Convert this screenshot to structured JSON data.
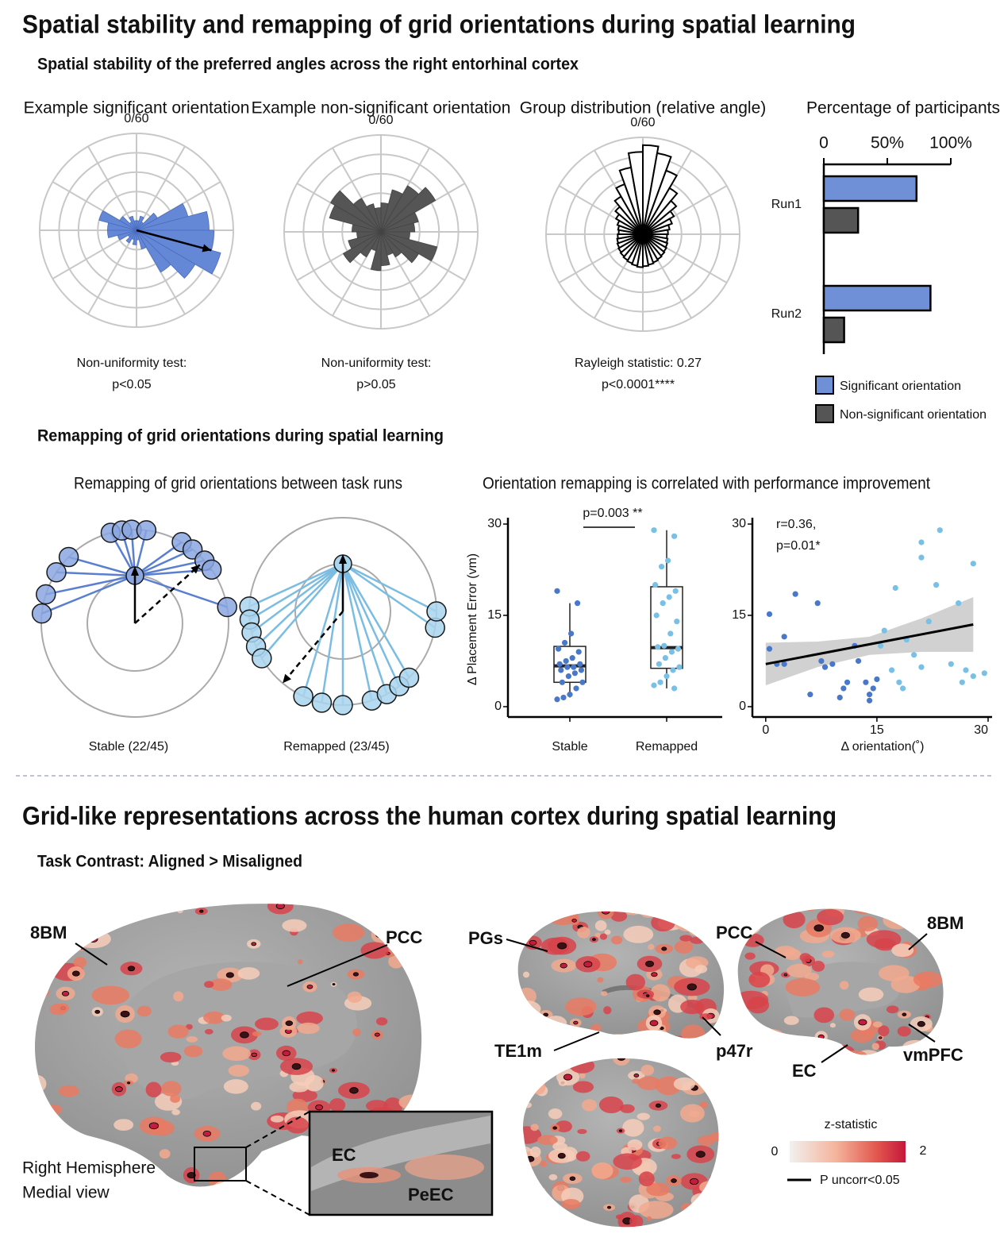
{
  "title": "Spatial stability and remapping of grid orientations during spatial learning",
  "stability": {
    "subtitle": "Spatial stability of the preferred angles across the right entorhinal cortex",
    "polar": [
      {
        "type": "rose",
        "title": "Example significant orientation",
        "top_label": "0/60",
        "color": "#6487d6",
        "edge": "#4a6cc0",
        "rlim": [
          0,
          1
        ],
        "values": [
          0.1,
          0.15,
          0.1,
          0.25,
          0.55,
          0.75,
          0.8,
          0.9,
          0.7,
          0.5,
          0.2,
          0.1,
          0.15,
          0.1,
          0.15,
          0.1,
          0.2,
          0.3,
          0.3,
          0.4,
          0.2,
          0.1,
          0.15,
          0.1
        ],
        "arrow": {
          "angle": 105,
          "length": 0.8
        },
        "caption": [
          "Non-uniformity test:",
          "p<0.05"
        ]
      },
      {
        "type": "rose",
        "title": "Example non-significant orientation",
        "top_label": "0/60",
        "color": "#555555",
        "edge": "#444444",
        "rlim": [
          0,
          1
        ],
        "values": [
          0.3,
          0.45,
          0.55,
          0.65,
          0.4,
          0.35,
          0.3,
          0.6,
          0.45,
          0.3,
          0.25,
          0.35,
          0.4,
          0.2,
          0.3,
          0.45,
          0.35,
          0.25,
          0.3,
          0.55,
          0.6,
          0.4,
          0.3,
          0.25
        ],
        "caption": [
          "Non-uniformity test:",
          "p>0.05"
        ]
      },
      {
        "type": "rose",
        "title": "Group distribution (relative angle)",
        "top_label": "0/60",
        "color": "#ffffff",
        "edge": "#000000",
        "rlim": [
          0,
          1
        ],
        "values": [
          0.92,
          0.85,
          0.7,
          0.55,
          0.45,
          0.37,
          0.32,
          0.28,
          0.26,
          0.25,
          0.26,
          0.27,
          0.28,
          0.29,
          0.3,
          0.31,
          0.32,
          0.33,
          0.34,
          0.33,
          0.32,
          0.31,
          0.3,
          0.29,
          0.28,
          0.27,
          0.26,
          0.25,
          0.26,
          0.28,
          0.32,
          0.37,
          0.45,
          0.55,
          0.7,
          0.85
        ],
        "caption": [
          "Rayleigh statistic: 0.27",
          "p<0.0001****"
        ]
      }
    ],
    "bar_chart": {
      "type": "bar",
      "title": "Percentage of participants",
      "orientation": "horizontal",
      "categories": [
        "Run1",
        "Run2"
      ],
      "series": [
        {
          "name": "Significant orientation",
          "color": "#6f8fd6",
          "values": [
            73,
            84
          ]
        },
        {
          "name": "Non-significant orientation",
          "color": "#555555",
          "values": [
            27,
            16
          ]
        }
      ],
      "xlim": [
        0,
        100
      ],
      "xticks": [
        0,
        {
          "value": 50,
          "label": "50%"
        },
        {
          "value": 100,
          "label": "100%"
        }
      ]
    }
  },
  "remapping": {
    "subtitle": "Remapping of grid orientations during spatial learning",
    "circles": {
      "title": "Remapping of grid orientations between task runs",
      "panels": [
        {
          "label": "Stable (22/45)",
          "color": "#8aa6e0",
          "line_color": "#5a7fd0",
          "angles": [
            -84,
            -72,
            -57,
            -45,
            -15,
            -8,
            -2,
            7,
            30,
            38,
            48,
            55,
            80
          ]
        },
        {
          "label": "Remapped (23/45)",
          "color": "#a9d5ee",
          "line_color": "#7bbde2",
          "angles": [
            -87,
            -95,
            -103,
            -112,
            -120,
            -155,
            -167,
            180,
            162,
            152,
            143,
            135,
            100,
            90
          ]
        }
      ]
    },
    "correlation_title": "Orientation remapping is correlated with performance improvement",
    "box_chart": {
      "type": "box",
      "ylabel": "Δ Placement Error (vm)",
      "categories": [
        "Stable",
        "Remapped"
      ],
      "ylim": [
        -1.7,
        30
      ],
      "yticks": [
        0,
        15,
        30
      ],
      "annotation": "p=0.003 **",
      "colors": [
        "#4a78c9",
        "#79c0e6"
      ],
      "stats": [
        {
          "low": 1.5,
          "q1": 4,
          "median": 6.7,
          "q3": 9.9,
          "high": 17
        },
        {
          "low": 3,
          "q1": 6.3,
          "median": 9.7,
          "q3": 19.7,
          "high": 29
        }
      ],
      "points": [
        [
          19,
          17,
          12,
          10.5,
          9.5,
          9,
          8,
          7.5,
          7,
          7,
          6.5,
          6.5,
          6,
          6,
          5.5,
          5,
          4,
          4,
          3,
          2,
          1.5,
          1.2
        ],
        [
          29,
          28,
          24,
          23,
          20,
          19,
          18,
          17,
          15,
          14,
          12,
          10,
          9.8,
          9.5,
          9,
          8,
          7,
          6.5,
          6,
          5,
          4,
          3.5,
          3
        ]
      ]
    },
    "scatter_chart": {
      "type": "scatter",
      "xlabel": "Δ orientation(˚)",
      "xlim": [
        -1.8,
        30
      ],
      "xticks": [
        0,
        15,
        30
      ],
      "ylim": [
        -1.7,
        30
      ],
      "yticks": [
        0,
        15,
        30
      ],
      "annotation": [
        "r=0.36,",
        "p=0.01*"
      ],
      "series": [
        {
          "color": "#4a78c9",
          "x": [
            0.5,
            0.5,
            1.5,
            2.5,
            2.5,
            4,
            6,
            7,
            7.5,
            8,
            9,
            10,
            10.5,
            11,
            12,
            12.5,
            13.5,
            14,
            14,
            14.5,
            15
          ],
          "y": [
            15.2,
            9.5,
            7,
            11.5,
            7,
            18.5,
            2,
            17,
            7.5,
            6.5,
            7,
            1.5,
            3,
            4,
            10,
            7.5,
            4,
            2,
            1,
            3,
            4.5
          ]
        },
        {
          "color": "#79c0e6",
          "x": [
            15.5,
            16,
            17,
            17.5,
            18,
            18.5,
            19,
            20,
            21,
            21,
            21,
            22,
            23,
            23.5,
            25,
            26,
            26.5,
            27,
            28,
            28,
            29.5
          ],
          "y": [
            10,
            12.5,
            6,
            19.5,
            4,
            3,
            11,
            8.5,
            27,
            24.5,
            6.5,
            14,
            20,
            29,
            7,
            17,
            4,
            6,
            5,
            23.5,
            5.5
          ]
        }
      ],
      "fit": {
        "x": [
          0,
          28
        ],
        "y": [
          7,
          13.5
        ]
      },
      "band": {
        "x": [
          0,
          7,
          14,
          21,
          28
        ],
        "lower": [
          3.5,
          6.5,
          8.5,
          9,
          9
        ],
        "upper": [
          10.5,
          10.7,
          11.5,
          14.5,
          18
        ]
      }
    }
  },
  "cortex": {
    "title": "Grid-like representations across the human cortex during spatial learning",
    "subtitle": "Task Contrast: Aligned > Misaligned",
    "labels": [
      "8BM",
      "PCC",
      "EC",
      "PeEC",
      "Right Hemisphere",
      "Medial view",
      "PGs",
      "PCC",
      "8BM",
      "TE1m",
      "p47r",
      "EC",
      "vmPFC"
    ],
    "colorbar": {
      "title": "z-statistic",
      "min": 0,
      "max": 2,
      "line_label": "P uncorr<0.05"
    }
  }
}
